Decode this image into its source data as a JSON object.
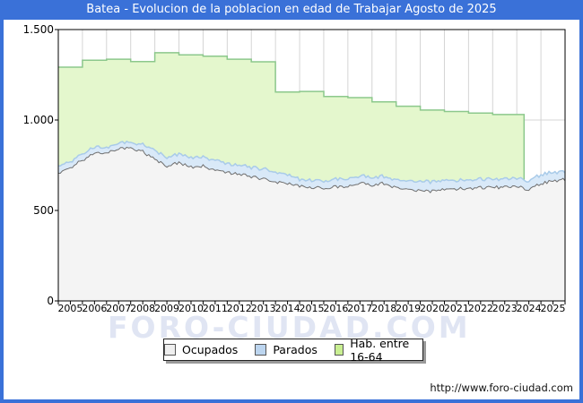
{
  "window": {
    "title": "Batea - Evolucion de la poblacion en edad de Trabajar Agosto de 2025"
  },
  "watermark": "FORO-CIUDAD.COM",
  "footer": {
    "url": "http://www.foro-ciudad.com"
  },
  "colors": {
    "titlebar": "#3a71d8",
    "frame": "#3a71d8",
    "plot_border": "#000000",
    "grid": "#d4d4d4",
    "watermark": "#ccd5ec",
    "hab_fill": "#e4f7cd",
    "hab_line": "#8cc88c",
    "parados_fill": "#d9e9f8",
    "parados_line": "#a9cbe9",
    "ocupados_fill": "#f4f4f4",
    "ocupados_line": "#6f6f6f"
  },
  "legend": [
    {
      "label": "Ocupados",
      "swatch": "#efefef",
      "border": "#555555"
    },
    {
      "label": "Parados",
      "swatch": "#bcd5ef",
      "border": "#555555"
    },
    {
      "label": "Hab. entre 16-64",
      "swatch": "#c9ef92",
      "border": "#555555"
    }
  ],
  "chart_data": {
    "type": "area",
    "title": "Batea - Evolucion de la poblacion en edad de Trabajar Agosto de 2025",
    "xlabel": "",
    "ylabel": "",
    "x_domain": [
      2005,
      2026
    ],
    "y_domain": [
      0,
      1500
    ],
    "grid": true,
    "legend_position": "bottom",
    "y_ticks": [
      {
        "v": 0,
        "label": "0"
      },
      {
        "v": 500,
        "label": "500"
      },
      {
        "v": 1000,
        "label": "1.000"
      },
      {
        "v": 1500,
        "label": "1.500"
      }
    ],
    "x_tick_years": [
      2005,
      2006,
      2007,
      2008,
      2009,
      2010,
      2011,
      2012,
      2013,
      2014,
      2015,
      2016,
      2017,
      2018,
      2019,
      2020,
      2021,
      2022,
      2023,
      2024,
      2025
    ],
    "minor_tick_step_years": 0.5,
    "series": [
      {
        "name": "Hab. entre 16-64",
        "key": "hab",
        "type": "step",
        "years": [
          2005,
          2006,
          2007,
          2008,
          2009,
          2010,
          2011,
          2012,
          2013,
          2014,
          2015,
          2016,
          2017,
          2018,
          2019,
          2020,
          2021,
          2022,
          2023,
          2024
        ],
        "values": [
          1292,
          1330,
          1336,
          1323,
          1372,
          1360,
          1353,
          1336,
          1322,
          1155,
          1158,
          1130,
          1124,
          1100,
          1076,
          1055,
          1047,
          1038,
          1030,
          1030
        ],
        "end_t": 2024.3
      },
      {
        "name": "Ocupados",
        "key": "ocupados",
        "type": "area",
        "anchor_t_start": 2005,
        "anchor_t_step": 0.5,
        "anchor_values": [
          705,
          735,
          778,
          820,
          822,
          838,
          848,
          825,
          782,
          748,
          763,
          740,
          748,
          722,
          708,
          697,
          688,
          672,
          655,
          648,
          635,
          628,
          622,
          632,
          630,
          650,
          640,
          650,
          622,
          615,
          605,
          608,
          613,
          618,
          622,
          625,
          627,
          630,
          630,
          618,
          648,
          662,
          672
        ]
      },
      {
        "name": "Parados",
        "key": "parados",
        "type": "band-stacked-on-ocupados",
        "anchor_t_start": 2005,
        "anchor_t_step": 0.5,
        "anchor_values": [
          38,
          35,
          33,
          32,
          30,
          30,
          32,
          40,
          48,
          50,
          50,
          53,
          52,
          56,
          48,
          50,
          52,
          55,
          53,
          50,
          38,
          40,
          42,
          40,
          42,
          40,
          42,
          40,
          42,
          45,
          50,
          52,
          50,
          48,
          46,
          45,
          45,
          44,
          46,
          50,
          48,
          46,
          44
        ]
      }
    ],
    "noise_amplitude": {
      "ocupados": 9,
      "parados": 4
    },
    "samples_per_year": 12
  }
}
